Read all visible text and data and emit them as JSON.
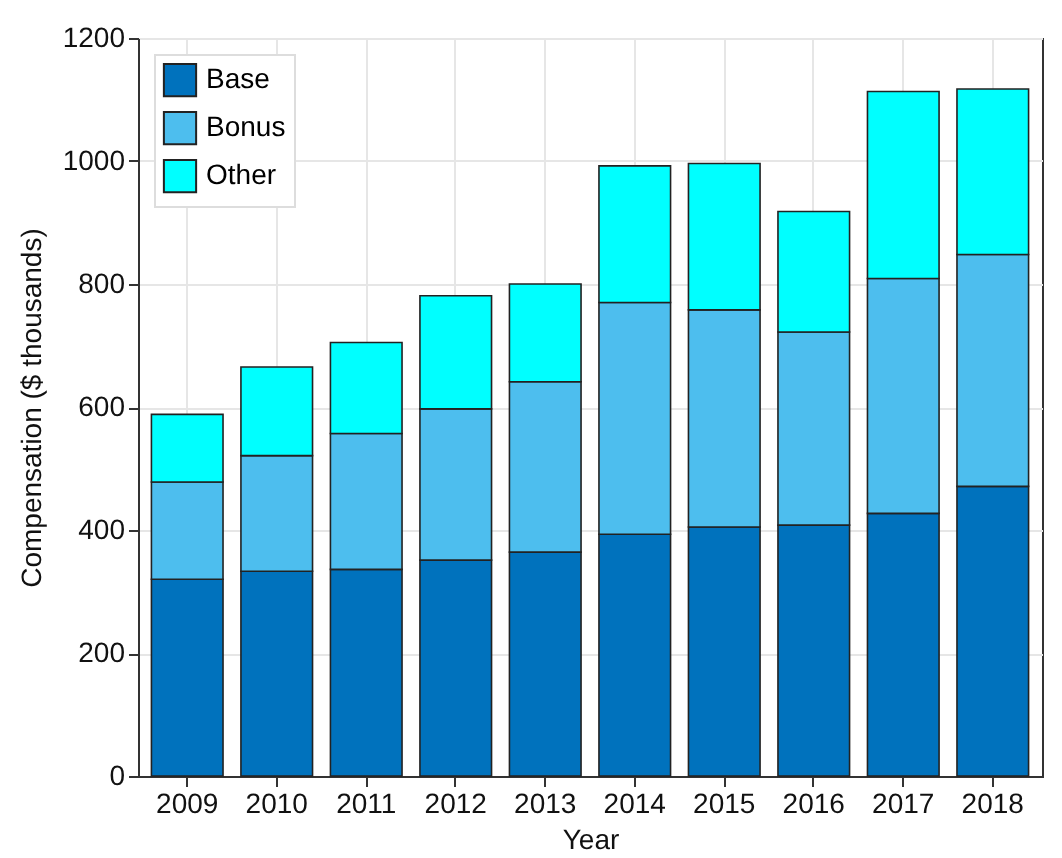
{
  "chart_data": {
    "type": "bar",
    "stacked": true,
    "xlabel": "Year",
    "ylabel": "Compensation ($ thousands)",
    "categories": [
      "2009",
      "2010",
      "2011",
      "2012",
      "2013",
      "2014",
      "2015",
      "2016",
      "2017",
      "2018"
    ],
    "series": [
      {
        "name": "Base",
        "color": "#0072bd",
        "values": [
          320,
          333,
          336,
          351,
          364,
          393,
          405,
          408,
          427,
          471
        ]
      },
      {
        "name": "Bonus",
        "color": "#4dbeee",
        "values": [
          158,
          188,
          221,
          246,
          277,
          377,
          353,
          314,
          382,
          377
        ]
      },
      {
        "name": "Other",
        "color": "#00ffff",
        "values": [
          110,
          144,
          148,
          184,
          159,
          222,
          238,
          196,
          304,
          269
        ]
      }
    ],
    "ylim": [
      0,
      1200
    ],
    "yticks": [
      0,
      200,
      400,
      600,
      800,
      1000,
      1200
    ],
    "grid": true,
    "legend": "top left"
  }
}
